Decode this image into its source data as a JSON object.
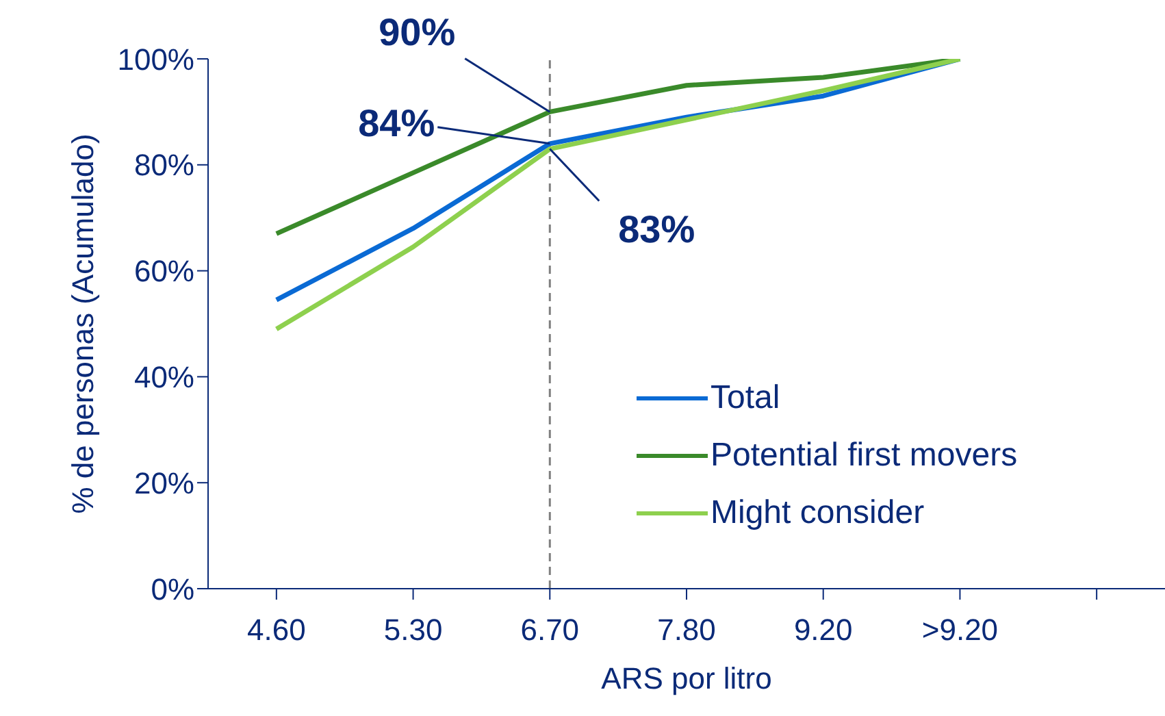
{
  "chart_data": {
    "type": "line",
    "xlabel": "ARS por litro",
    "ylabel": "% de personas (Acumulado)",
    "categories": [
      "4.60",
      "5.30",
      "6.70",
      "7.80",
      "9.20",
      ">9.20",
      null
    ],
    "series": [
      {
        "name": "Total",
        "color": "#0a6ad4",
        "values": [
          54.5,
          68,
          84,
          89,
          93,
          100,
          null
        ]
      },
      {
        "name": "Potential first movers",
        "color": "#3a8a2a",
        "values": [
          67,
          78.5,
          90,
          95,
          96.5,
          100,
          null
        ]
      },
      {
        "name": "Might consider",
        "color": "#8ed04e",
        "values": [
          49,
          64.5,
          83,
          88.5,
          94,
          100,
          null
        ]
      }
    ],
    "ylim": [
      0,
      100
    ],
    "yticks": [
      {
        "value": 0,
        "label": "0%"
      },
      {
        "value": 20,
        "label": "20%"
      },
      {
        "value": 40,
        "label": "40%"
      },
      {
        "value": 60,
        "label": "60%"
      },
      {
        "value": 80,
        "label": "80%"
      },
      {
        "value": 100,
        "label": "100%"
      }
    ],
    "ref_lines": [
      {
        "axis": "x",
        "value": "6.70",
        "color": "#808080",
        "line_style": "dashed"
      }
    ],
    "annotations": [
      {
        "text": "90%",
        "x": "6.70",
        "y": 90
      },
      {
        "text": "84%",
        "x": "6.70",
        "y": 84
      },
      {
        "text": "83%",
        "x": "6.70",
        "y": 83
      }
    ],
    "legend": "bottom right",
    "grid": false,
    "marker": "none",
    "line_style": "solid"
  }
}
